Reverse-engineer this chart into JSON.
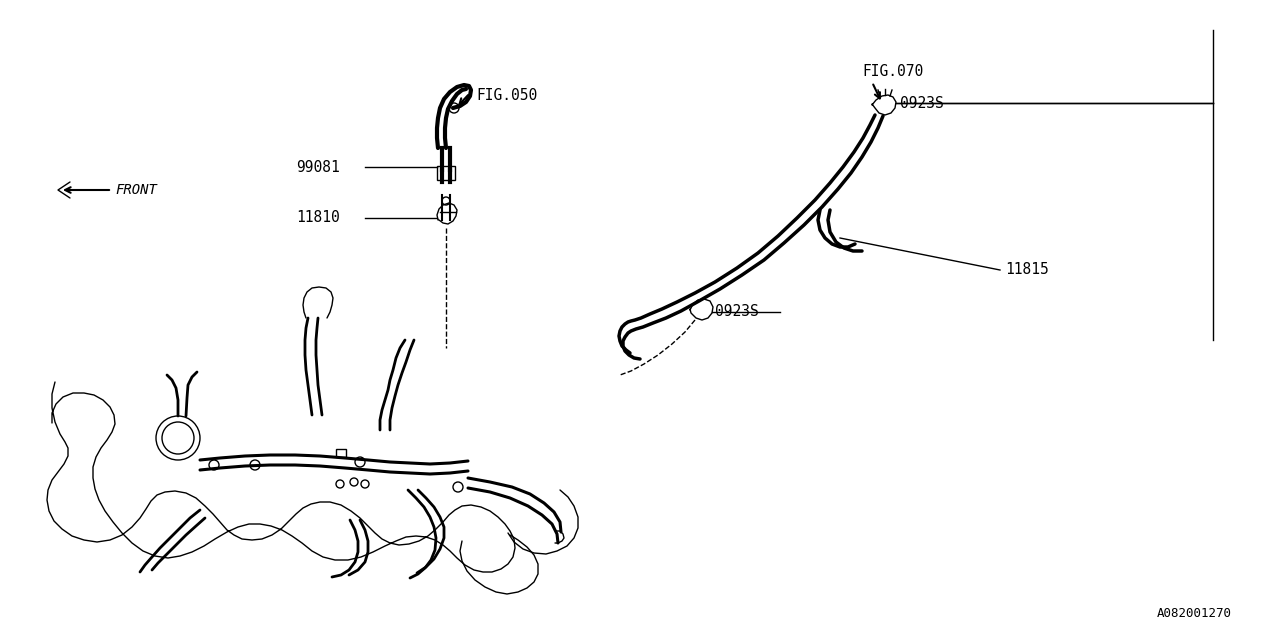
{
  "bg_color": "#ffffff",
  "line_color": "#000000",
  "labels": {
    "fig050": "FIG.050",
    "fig070": "FIG.070",
    "part99081": "99081",
    "part11810": "11810",
    "part0923S_top": "0923S",
    "part0923S_bottom": "0923S",
    "part11815": "11815",
    "front": "FRONT",
    "diagram_id": "A082001270"
  }
}
